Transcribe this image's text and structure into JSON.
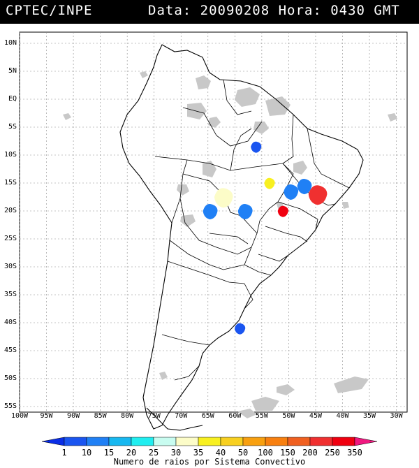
{
  "header": {
    "org": "CPTEC/INPE",
    "datetime": "Data: 20090208 Hora: 0430 GMT"
  },
  "map": {
    "lat_labels": [
      "10N",
      "5N",
      "EQ",
      "5S",
      "10S",
      "15S",
      "20S",
      "25S",
      "30S",
      "35S",
      "40S",
      "45S",
      "50S",
      "55S"
    ],
    "lon_labels": [
      "100W",
      "95W",
      "90W",
      "85W",
      "80W",
      "75W",
      "70W",
      "65W",
      "60W",
      "55W",
      "50W",
      "45W",
      "40W",
      "35W",
      "30W"
    ],
    "lon_range": [
      -100,
      -28
    ],
    "lat_range": [
      -56,
      12
    ]
  },
  "legend": {
    "caption": "Numero de raios por Sistema Convectivo",
    "levels": [
      "1",
      "10",
      "15",
      "20",
      "25",
      "30",
      "35",
      "40",
      "50",
      "100",
      "150",
      "200",
      "250",
      "350"
    ],
    "colors": [
      "#0a2ee6",
      "#1a55f0",
      "#2080f5",
      "#18b8f0",
      "#20eef0",
      "#c8fcf0",
      "#fcfcc8",
      "#f8f020",
      "#f8d020",
      "#f8a010",
      "#f88010",
      "#f06020",
      "#f03030",
      "#f00010",
      "#f01880"
    ]
  },
  "systems": [
    {
      "level": "1",
      "lon": -56,
      "lat": -8.5
    },
    {
      "level": "35",
      "lon": -53.5,
      "lat": -15
    },
    {
      "level": "30",
      "lon": -62,
      "lat": -17.5
    },
    {
      "level": "10",
      "lon": -58,
      "lat": -20
    },
    {
      "level": "10",
      "lon": -64.5,
      "lat": -20
    },
    {
      "level": "10",
      "lon": -49.5,
      "lat": -16.5
    },
    {
      "level": "10",
      "lon": -47,
      "lat": -15.5
    },
    {
      "level": "200",
      "lon": -44.5,
      "lat": -17
    },
    {
      "level": "250",
      "lon": -51,
      "lat": -20
    },
    {
      "level": "1",
      "lon": -59,
      "lat": -41
    }
  ]
}
